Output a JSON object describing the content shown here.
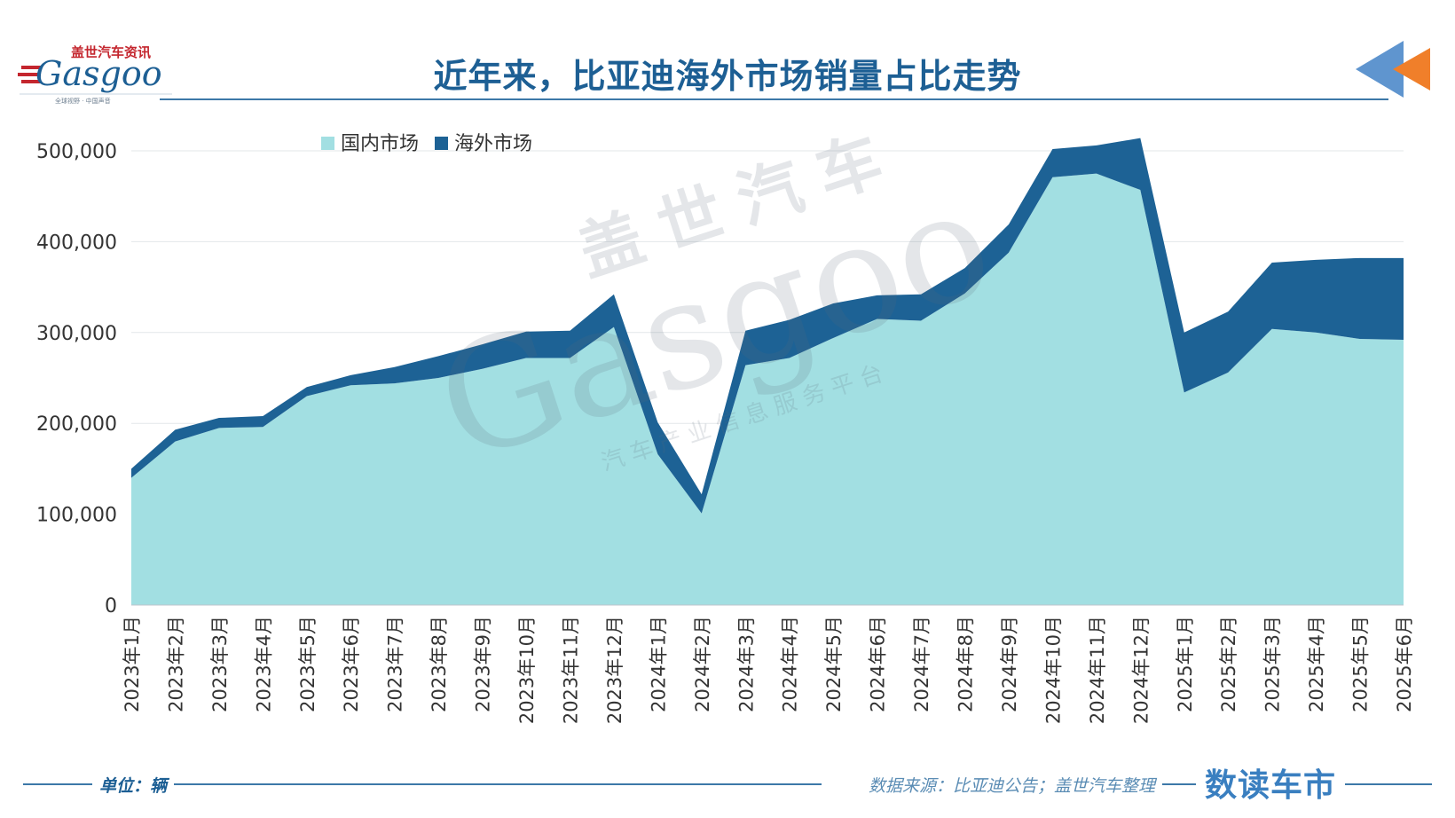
{
  "header": {
    "logo_cn": "盖世汽车资讯",
    "logo_en": "Gasgoo",
    "logo_tagline": "全球视野 · 中国声音",
    "title": "近年来，比亚迪海外市场销量占比走势"
  },
  "watermark": {
    "cn": "盖世汽车",
    "en": "Gasgoo",
    "tagline": "汽车产业信息服务平台"
  },
  "footer": {
    "unit": "单位：辆",
    "source": "数据来源：比亚迪公告；盖世汽车整理",
    "brand": "数读车市"
  },
  "colors": {
    "domestic": "#a2dfe2",
    "overseas": "#1d6295",
    "title": "#1d5f94",
    "accent_orange": "#f07f2a",
    "accent_blue": "#5f95cf"
  },
  "chart_data": {
    "type": "area",
    "stacked": true,
    "title": "近年来，比亚迪海外市场销量占比走势",
    "xlabel": "",
    "ylabel": "",
    "ylim": [
      0,
      500000
    ],
    "yticks": [
      "0",
      "100,000",
      "200,000",
      "300,000",
      "400,000",
      "500,000"
    ],
    "legend_position": "top-left",
    "grid": true,
    "categories": [
      "2023年1月",
      "2023年2月",
      "2023年3月",
      "2023年4月",
      "2023年5月",
      "2023年6月",
      "2023年7月",
      "2023年8月",
      "2023年9月",
      "2023年10月",
      "2023年11月",
      "2023年12月",
      "2024年1月",
      "2024年2月",
      "2024年3月",
      "2024年4月",
      "2024年5月",
      "2024年6月",
      "2024年7月",
      "2024年8月",
      "2024年9月",
      "2024年10月",
      "2024年11月",
      "2024年12月",
      "2025年1月",
      "2025年2月",
      "2025年3月",
      "2025年4月",
      "2025年5月",
      "2025年6月"
    ],
    "series": [
      {
        "name": "国内市场",
        "color": "#a2dfe2",
        "values": [
          140000,
          180000,
          195000,
          196000,
          230000,
          242000,
          244000,
          250000,
          260000,
          272000,
          272000,
          306000,
          166000,
          101000,
          264000,
          272000,
          294000,
          315000,
          313000,
          343000,
          388000,
          471000,
          475000,
          457000,
          234000,
          256000,
          304000,
          300000,
          293000,
          292000
        ]
      },
      {
        "name": "海外市场",
        "color": "#1d6295",
        "values": [
          10000,
          13000,
          11000,
          12000,
          10000,
          11000,
          18000,
          24000,
          27000,
          29000,
          30000,
          36000,
          35000,
          21000,
          38000,
          42000,
          38000,
          26000,
          29000,
          28000,
          31000,
          31000,
          31000,
          57000,
          66000,
          67000,
          73000,
          80000,
          89000,
          90000
        ]
      }
    ]
  }
}
